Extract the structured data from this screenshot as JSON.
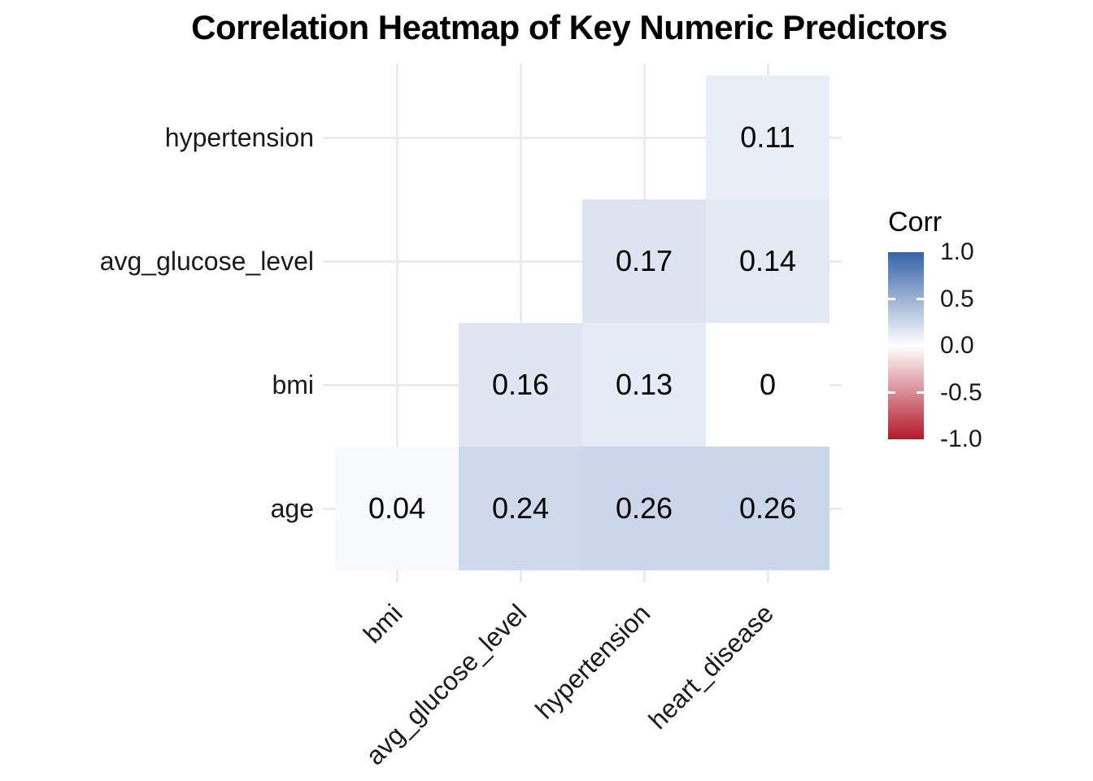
{
  "title": "Correlation Heatmap of Key Numeric Predictors",
  "chart_data": {
    "type": "heatmap",
    "title": "Correlation Heatmap of Key Numeric Predictors",
    "x_categories": [
      "bmi",
      "avg_glucose_level",
      "hypertension",
      "heart_disease"
    ],
    "y_categories_top_to_bottom": [
      "hypertension",
      "avg_glucose_level",
      "bmi",
      "age"
    ],
    "cells": [
      {
        "x": "heart_disease",
        "y": "hypertension",
        "value": 0.11,
        "label": "0.11"
      },
      {
        "x": "hypertension",
        "y": "avg_glucose_level",
        "value": 0.17,
        "label": "0.17"
      },
      {
        "x": "heart_disease",
        "y": "avg_glucose_level",
        "value": 0.14,
        "label": "0.14"
      },
      {
        "x": "avg_glucose_level",
        "y": "bmi",
        "value": 0.16,
        "label": "0.16"
      },
      {
        "x": "hypertension",
        "y": "bmi",
        "value": 0.13,
        "label": "0.13"
      },
      {
        "x": "heart_disease",
        "y": "bmi",
        "value": 0,
        "label": "0"
      },
      {
        "x": "bmi",
        "y": "age",
        "value": 0.04,
        "label": "0.04"
      },
      {
        "x": "avg_glucose_level",
        "y": "age",
        "value": 0.24,
        "label": "0.24"
      },
      {
        "x": "hypertension",
        "y": "age",
        "value": 0.26,
        "label": "0.26"
      },
      {
        "x": "heart_disease",
        "y": "age",
        "value": 0.26,
        "label": "0.26"
      }
    ],
    "value_range": [
      -1,
      1
    ],
    "grid": true,
    "legend": {
      "title": "Corr",
      "position": "right",
      "tick_labels": [
        "1.0",
        "0.5",
        "0.0",
        "-0.5",
        "-1.0"
      ],
      "tick_values": [
        1.0,
        0.5,
        0.0,
        -0.5,
        -1.0
      ],
      "high_color": "#3463aa",
      "mid_color": "#ffffff",
      "low_color": "#b2182b"
    },
    "colors": {
      "grid_color": "#ebebeb",
      "text_color": "#000000",
      "axis_text_color": "#1a1a1a"
    }
  }
}
